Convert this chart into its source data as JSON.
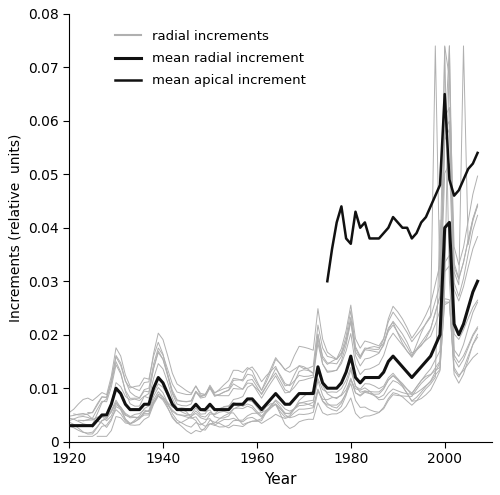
{
  "years": [
    1920,
    1921,
    1922,
    1923,
    1924,
    1925,
    1926,
    1927,
    1928,
    1929,
    1930,
    1931,
    1932,
    1933,
    1934,
    1935,
    1936,
    1937,
    1938,
    1939,
    1940,
    1941,
    1942,
    1943,
    1944,
    1945,
    1946,
    1947,
    1948,
    1949,
    1950,
    1951,
    1952,
    1953,
    1954,
    1955,
    1956,
    1957,
    1958,
    1959,
    1960,
    1961,
    1962,
    1963,
    1964,
    1965,
    1966,
    1967,
    1968,
    1969,
    1970,
    1971,
    1972,
    1973,
    1974,
    1975,
    1976,
    1977,
    1978,
    1979,
    1980,
    1981,
    1982,
    1983,
    1984,
    1985,
    1986,
    1987,
    1988,
    1989,
    1990,
    1991,
    1992,
    1993,
    1994,
    1995,
    1996,
    1997,
    1998,
    1999,
    2000,
    2001,
    2002,
    2003,
    2004,
    2005,
    2006,
    2007
  ],
  "mean_radial": [
    0.003,
    0.003,
    0.003,
    0.003,
    0.003,
    0.003,
    0.004,
    0.005,
    0.005,
    0.007,
    0.01,
    0.009,
    0.007,
    0.006,
    0.006,
    0.006,
    0.007,
    0.007,
    0.01,
    0.012,
    0.011,
    0.009,
    0.007,
    0.006,
    0.006,
    0.006,
    0.006,
    0.007,
    0.006,
    0.006,
    0.007,
    0.006,
    0.006,
    0.006,
    0.006,
    0.007,
    0.007,
    0.007,
    0.008,
    0.008,
    0.007,
    0.006,
    0.007,
    0.008,
    0.009,
    0.008,
    0.007,
    0.007,
    0.008,
    0.009,
    0.009,
    0.009,
    0.009,
    0.014,
    0.011,
    0.01,
    0.01,
    0.01,
    0.011,
    0.013,
    0.016,
    0.012,
    0.011,
    0.012,
    0.012,
    0.012,
    0.012,
    0.013,
    0.015,
    0.016,
    0.015,
    0.014,
    0.013,
    0.012,
    0.013,
    0.014,
    0.015,
    0.016,
    0.018,
    0.02,
    0.04,
    0.041,
    0.022,
    0.02,
    0.022,
    0.025,
    0.028,
    0.03
  ],
  "years_apical": [
    1975,
    1976,
    1977,
    1978,
    1979,
    1980,
    1981,
    1982,
    1983,
    1984,
    1985,
    1986,
    1987,
    1988,
    1989,
    1990,
    1991,
    1992,
    1993,
    1994,
    1995,
    1996,
    1997,
    1998,
    1999,
    2000,
    2001,
    2002,
    2003,
    2004,
    2005,
    2006,
    2007
  ],
  "mean_apical": [
    0.03,
    0.036,
    0.041,
    0.044,
    0.038,
    0.037,
    0.043,
    0.04,
    0.041,
    0.038,
    0.038,
    0.038,
    0.039,
    0.04,
    0.042,
    0.041,
    0.04,
    0.04,
    0.038,
    0.039,
    0.041,
    0.042,
    0.044,
    0.046,
    0.048,
    0.065,
    0.049,
    0.046,
    0.047,
    0.049,
    0.051,
    0.052,
    0.054
  ],
  "gray_color": "#b0b0b0",
  "mean_radial_color": "#111111",
  "mean_apical_color": "#111111",
  "ylabel": "Increments (relative  units)",
  "xlabel": "Year",
  "ylim": [
    0,
    0.08
  ],
  "xlim": [
    1920,
    2010
  ],
  "yticks": [
    0,
    0.01,
    0.02,
    0.03,
    0.04,
    0.05,
    0.06,
    0.07,
    0.08
  ],
  "xticks": [
    1920,
    1940,
    1960,
    1980,
    2000
  ],
  "legend_labels": [
    "radial increments",
    "mean radial increment",
    "mean apical increment"
  ],
  "radial_lw": 0.7,
  "mean_radial_lw": 2.2,
  "mean_apical_lw": 1.8,
  "n_individual": 13
}
